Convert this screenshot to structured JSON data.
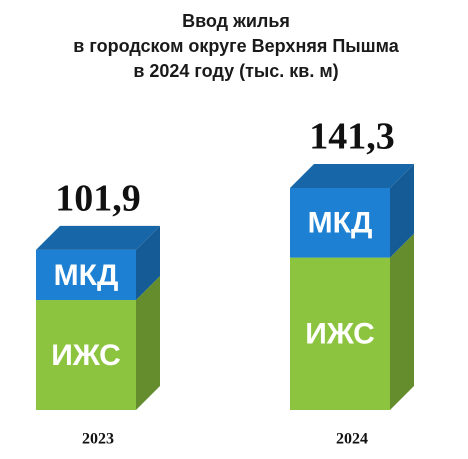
{
  "chart_data": {
    "type": "bar3d_stacked",
    "title": [
      "Ввод жилья",
      "в городском округе Верхняя Пышма",
      "в 2024 году (тыс. кв. м)"
    ],
    "categories": [
      "2023",
      "2024"
    ],
    "series": [
      {
        "name": "ИЖС",
        "color": "#8cc43f",
        "values": [
          70,
          97
        ]
      },
      {
        "name": "МКД",
        "color": "#1d80d2",
        "values": [
          31.9,
          44.3
        ]
      }
    ],
    "totals": [
      101.9,
      141.3
    ],
    "total_labels": [
      "101,9",
      "141,3"
    ]
  }
}
